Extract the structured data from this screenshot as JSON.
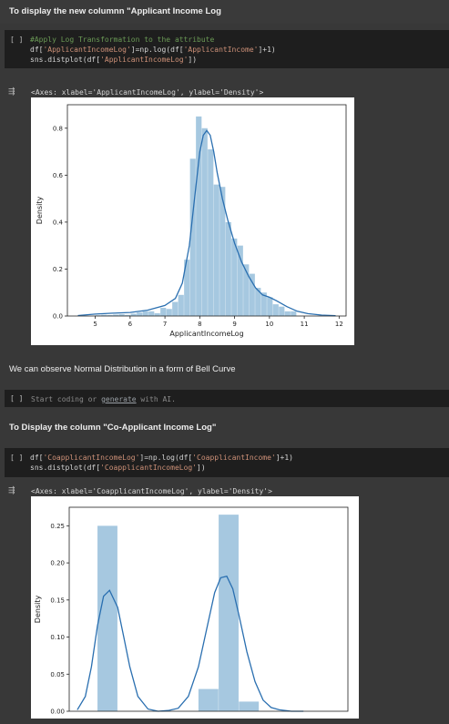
{
  "cells": {
    "heading1": "To display the new columnn \"Applicant Income Log",
    "code1": {
      "bracket": "[ ]",
      "line1": "#Apply Log Transformation to the attribute",
      "line2a": "df[",
      "line2b": "'ApplicantIncomeLog'",
      "line2c": "]=np.log(df[",
      "line2d": "'ApplicantIncome'",
      "line2e": "]+1)",
      "line3a": "sns.distplot(df[",
      "line3b": "'ApplicantIncomeLog'",
      "line3c": "])"
    },
    "output1": "<Axes: xlabel='ApplicantIncomeLog', ylabel='Density'>",
    "note": "We can observe Normal Distribution in a form of Bell Curve",
    "empty_cell": {
      "bracket": "[ ]",
      "prefix": "Start coding or ",
      "link": "generate",
      "suffix": " with AI."
    },
    "heading2": "To Display the column \"Co-Applicant Income Log\"",
    "code2": {
      "bracket": "[ ]",
      "line1a": "df[",
      "line1b": "'CoapplicantIncomeLog'",
      "line1c": "]=np.log(df[",
      "line1d": "'CoapplicantIncome'",
      "line1e": "]+1)",
      "line2a": "sns.distplot(df[",
      "line2b": "'CoapplicantIncomeLog'",
      "line2c": "])"
    },
    "output2": "<Axes: xlabel='CoapplicantIncomeLog', ylabel='Density'>"
  },
  "colors": {
    "bar": "#a6c8e0",
    "line": "#2a6fb0",
    "background": "#383838",
    "code_bg": "#1e1e1e"
  },
  "chart_data": [
    {
      "type": "bar",
      "xlabel": "ApplicantIncomeLog",
      "ylabel": "Density",
      "xlim": [
        4.2,
        12.2
      ],
      "ylim": [
        0,
        0.9
      ],
      "xticks": [
        5,
        6,
        7,
        8,
        9,
        10,
        11,
        12
      ],
      "yticks": [
        0.0,
        0.2,
        0.4,
        0.6,
        0.8
      ],
      "ytick_labels": [
        "0.0",
        "0.2",
        "0.4",
        "0.6",
        "0.8"
      ],
      "bin_width": 0.17,
      "bins_start": [
        5.0,
        5.17,
        5.34,
        5.51,
        5.68,
        5.85,
        6.02,
        6.19,
        6.36,
        6.53,
        6.7,
        6.87,
        7.04,
        7.21,
        7.38,
        7.55,
        7.72,
        7.89,
        8.06,
        8.23,
        8.4,
        8.57,
        8.74,
        8.91,
        9.08,
        9.25,
        9.42,
        9.59,
        9.76,
        9.93,
        10.1,
        10.27,
        10.44,
        10.61
      ],
      "values": [
        0.003,
        0.005,
        0.004,
        0.006,
        0.008,
        0.005,
        0.01,
        0.015,
        0.02,
        0.02,
        0.012,
        0.035,
        0.03,
        0.06,
        0.09,
        0.24,
        0.67,
        0.85,
        0.8,
        0.71,
        0.56,
        0.55,
        0.4,
        0.33,
        0.3,
        0.22,
        0.18,
        0.12,
        0.1,
        0.08,
        0.05,
        0.04,
        0.02,
        0.02
      ],
      "kde_x": [
        4.5,
        5.0,
        5.5,
        6.0,
        6.5,
        7.0,
        7.3,
        7.5,
        7.7,
        7.85,
        8.0,
        8.1,
        8.2,
        8.3,
        8.4,
        8.5,
        8.65,
        8.8,
        9.0,
        9.2,
        9.4,
        9.6,
        9.8,
        10.0,
        10.2,
        10.5,
        10.8,
        11.1,
        11.5,
        11.9
      ],
      "kde_y": [
        0.002,
        0.008,
        0.012,
        0.015,
        0.025,
        0.045,
        0.075,
        0.14,
        0.3,
        0.5,
        0.7,
        0.77,
        0.79,
        0.77,
        0.7,
        0.61,
        0.5,
        0.41,
        0.31,
        0.23,
        0.17,
        0.12,
        0.09,
        0.08,
        0.065,
        0.04,
        0.02,
        0.01,
        0.004,
        0.001
      ]
    },
    {
      "type": "bar",
      "xlabel": "",
      "ylabel": "Density",
      "xlim": [
        -1.4,
        12.4
      ],
      "ylim": [
        0,
        0.275
      ],
      "yticks": [
        0.0,
        0.05,
        0.1,
        0.15,
        0.2,
        0.25
      ],
      "ytick_labels": [
        "0.00",
        "0.05",
        "0.10",
        "0.15",
        "0.20",
        "0.25"
      ],
      "bins_start": [
        0,
        1.0,
        2.0,
        3.0,
        4.0,
        5.0,
        6.0,
        7.0,
        8.0,
        9.0
      ],
      "bin_width": 1.0,
      "values": [
        0.25,
        0.0,
        0.0,
        0.0,
        0.0,
        0.03,
        0.265,
        0.013,
        0.0,
        0.0
      ],
      "kde_x": [
        -1.0,
        -0.6,
        -0.3,
        0.0,
        0.3,
        0.6,
        1.0,
        1.3,
        1.6,
        2.0,
        2.5,
        3.0,
        3.5,
        4.0,
        4.5,
        5.0,
        5.4,
        5.8,
        6.1,
        6.4,
        6.7,
        7.0,
        7.4,
        7.8,
        8.2,
        8.6,
        9.0,
        9.6,
        10.2
      ],
      "kde_y": [
        0.002,
        0.02,
        0.06,
        0.115,
        0.155,
        0.163,
        0.14,
        0.1,
        0.06,
        0.02,
        0.003,
        0.0,
        0.001,
        0.004,
        0.02,
        0.06,
        0.11,
        0.16,
        0.18,
        0.182,
        0.165,
        0.13,
        0.08,
        0.04,
        0.015,
        0.005,
        0.002,
        0.0,
        0.0
      ]
    }
  ]
}
